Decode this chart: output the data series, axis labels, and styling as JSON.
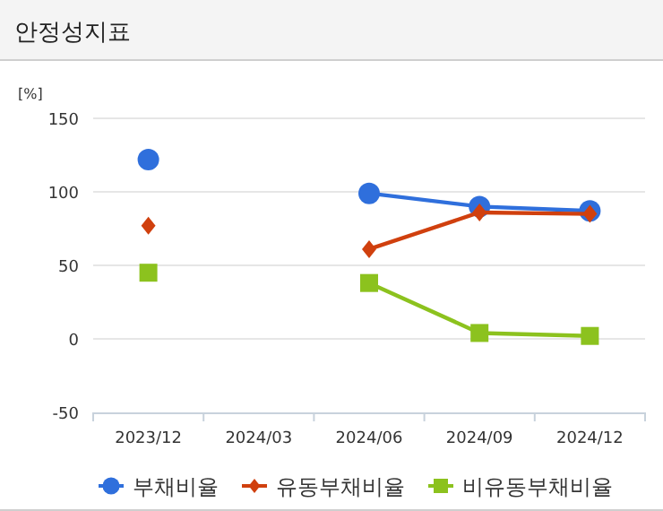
{
  "chart_data": {
    "type": "line",
    "title": "안정성지표",
    "ylabel": "[%]",
    "categories": [
      "2023/12",
      "2024/03",
      "2024/06",
      "2024/09",
      "2024/12"
    ],
    "ylim": [
      -50,
      150
    ],
    "yticks": [
      -50,
      0,
      50,
      100,
      150
    ],
    "grid": "y",
    "legend": "bottom",
    "series": [
      {
        "name": "부채비율",
        "color": "#2f6fdc",
        "marker": "circle",
        "values": [
          122,
          null,
          99,
          90,
          87
        ]
      },
      {
        "name": "유동부채비율",
        "color": "#d0400e",
        "marker": "diamond",
        "values": [
          77,
          null,
          61,
          86,
          85
        ]
      },
      {
        "name": "비유동부채비율",
        "color": "#8cc21e",
        "marker": "square",
        "values": [
          45,
          null,
          38,
          4,
          2
        ]
      }
    ]
  }
}
